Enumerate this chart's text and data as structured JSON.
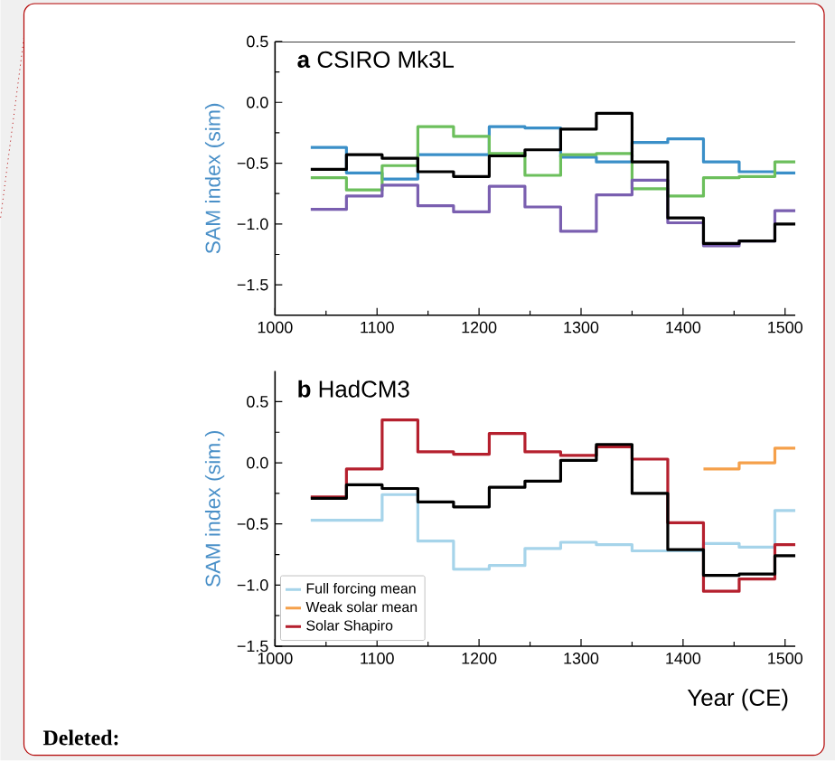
{
  "chart_data": [
    {
      "type": "step",
      "title": "**a**   CSIRO Mk3L",
      "ylabel": "SAM index (sim)",
      "x": [
        1035,
        1070,
        1105,
        1140,
        1175,
        1210,
        1245,
        1280,
        1315,
        1350,
        1385,
        1420,
        1455,
        1490
      ],
      "series": [
        {
          "color": "#3a8fc8",
          "values": [
            -0.37,
            -0.58,
            -0.63,
            -0.43,
            -0.43,
            -0.2,
            -0.21,
            -0.45,
            -0.49,
            -0.33,
            -0.3,
            -0.49,
            -0.57,
            -0.58
          ]
        },
        {
          "color": "#6cbf5c",
          "values": [
            -0.62,
            -0.72,
            -0.52,
            -0.2,
            -0.28,
            -0.42,
            -0.6,
            -0.43,
            -0.42,
            -0.71,
            -0.77,
            -0.62,
            -0.61,
            -0.49
          ]
        },
        {
          "color": "#7a5fb0",
          "values": [
            -0.88,
            -0.77,
            -0.68,
            -0.85,
            -0.9,
            -0.69,
            -0.86,
            -1.06,
            -0.76,
            -0.64,
            -0.99,
            -1.18,
            -1.14,
            -0.89
          ]
        },
        {
          "color": "#000000",
          "values": [
            -0.55,
            -0.43,
            -0.46,
            -0.57,
            -0.61,
            -0.44,
            -0.39,
            -0.22,
            -0.09,
            -0.49,
            -0.95,
            -1.16,
            -1.14,
            -1.0
          ]
        }
      ],
      "xlim": [
        1000,
        1510
      ],
      "xticks": [
        1000,
        1100,
        1200,
        1300,
        1400,
        1500
      ],
      "ylim": [
        -1.75,
        0.5
      ],
      "yticks": [
        {
          "value": -1.5,
          "label": "−1.5"
        },
        {
          "value": -1,
          "label": "−1.0"
        },
        {
          "value": -0.5,
          "label": "−0.5"
        },
        {
          "value": 0,
          "label": "0.0"
        },
        {
          "value": 0.5,
          "label": "0.5"
        }
      ],
      "grid": false,
      "legend": false
    },
    {
      "type": "step",
      "title": "**b**   HadCM3",
      "ylabel": "SAM index (sim.)",
      "xlabel": "Year (CE)",
      "x": [
        1035,
        1070,
        1105,
        1140,
        1175,
        1210,
        1245,
        1280,
        1315,
        1350,
        1385,
        1420,
        1455,
        1490
      ],
      "series": [
        {
          "name": "Full forcing mean",
          "color": "#a6d4ea",
          "values": [
            -0.47,
            -0.47,
            -0.26,
            -0.64,
            -0.87,
            -0.84,
            -0.7,
            -0.65,
            -0.67,
            -0.72,
            -0.72,
            -0.66,
            -0.69,
            -0.39
          ]
        },
        {
          "name": "Weak solar mean",
          "color": "#f5a04a",
          "values": [
            null,
            null,
            null,
            null,
            null,
            null,
            null,
            null,
            null,
            null,
            null,
            -0.05,
            0.0,
            0.12
          ]
        },
        {
          "name": "Solar Shapiro",
          "color": "#b5202e",
          "values": [
            -0.28,
            -0.05,
            0.35,
            0.09,
            0.07,
            0.24,
            0.09,
            0.06,
            0.13,
            0.03,
            -0.49,
            -1.05,
            -0.95,
            -0.67
          ]
        },
        {
          "color": "#000000",
          "values": [
            -0.29,
            -0.18,
            -0.21,
            -0.32,
            -0.36,
            -0.2,
            -0.15,
            0.02,
            0.15,
            -0.25,
            -0.71,
            -0.92,
            -0.91,
            -0.76
          ]
        }
      ],
      "xlim": [
        1000,
        1510
      ],
      "xticks": [
        1000,
        1100,
        1200,
        1300,
        1400,
        1500
      ],
      "ylim": [
        -1.5,
        0.75
      ],
      "yticks": [
        {
          "value": -1.5,
          "label": "−1.5"
        },
        {
          "value": -1,
          "label": "−1.0"
        },
        {
          "value": -0.5,
          "label": "−0.5"
        },
        {
          "value": 0,
          "label": "0.0"
        },
        {
          "value": 0.5,
          "label": "0.5"
        }
      ],
      "grid": false,
      "legend": "bottom left",
      "annotations": [
        "Deleted:"
      ]
    }
  ]
}
